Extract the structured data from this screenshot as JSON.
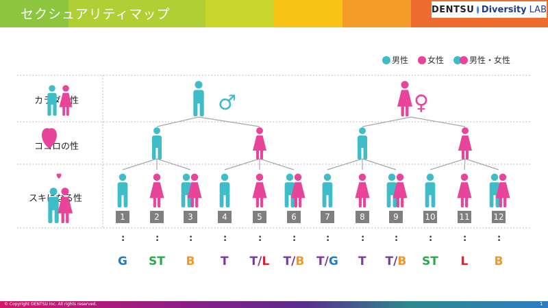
{
  "header": {
    "title": "セクシュアリティマップ",
    "colors": [
      "#8cc63f",
      "#c9d62c",
      "#f9c316",
      "#f39b26",
      "#ef7a2b",
      "#e96231"
    ]
  },
  "logo": {
    "part1": "DENTSU",
    "part2": "Diversity",
    "part3": "LAB"
  },
  "legend": [
    {
      "label": "男性",
      "color": "#3ebdc9"
    },
    {
      "label": "女性",
      "color": "#e8449a"
    },
    {
      "label": "男性・女性",
      "color": "both"
    }
  ],
  "rows": {
    "body": "カラダの性",
    "heart": "ココロの性",
    "attraction": "スキになる性"
  },
  "symbols": {
    "male": "♂",
    "female": "♀"
  },
  "numbers": [
    "1",
    "2",
    "3",
    "4",
    "5",
    "6",
    "7",
    "8",
    "9",
    "10",
    "11",
    "12"
  ],
  "categories": [
    [
      {
        "t": "G",
        "c": "#1f7cc4"
      }
    ],
    [
      {
        "t": "ST",
        "c": "#2aa84a"
      }
    ],
    [
      {
        "t": "B",
        "c": "#f0982a"
      }
    ],
    [
      {
        "t": "T",
        "c": "#7a3a9e"
      }
    ],
    [
      {
        "t": "T",
        "c": "#7a3a9e"
      },
      {
        "t": "/",
        "c": "#7a3a9e"
      },
      {
        "t": "L",
        "c": "#d12630"
      }
    ],
    [
      {
        "t": "T",
        "c": "#7a3a9e"
      },
      {
        "t": "/",
        "c": "#7a3a9e"
      },
      {
        "t": "B",
        "c": "#f0982a"
      }
    ],
    [
      {
        "t": "T",
        "c": "#7a3a9e"
      },
      {
        "t": "/",
        "c": "#7a3a9e"
      },
      {
        "t": "G",
        "c": "#1f7cc4"
      }
    ],
    [
      {
        "t": "T",
        "c": "#7a3a9e"
      }
    ],
    [
      {
        "t": "T",
        "c": "#7a3a9e"
      },
      {
        "t": "/",
        "c": "#7a3a9e"
      },
      {
        "t": "B",
        "c": "#f0982a"
      }
    ],
    [
      {
        "t": "ST",
        "c": "#2aa84a"
      }
    ],
    [
      {
        "t": "L",
        "c": "#d12630"
      }
    ],
    [
      {
        "t": "B",
        "c": "#f0982a"
      }
    ]
  ],
  "bottom_figures": [
    "m",
    "f",
    "mf",
    "m",
    "f",
    "mf",
    "m",
    "f",
    "mf",
    "m",
    "f",
    "mf"
  ],
  "colon": ":",
  "footer": {
    "copyright": "© Copyright DENTSU Inc. All rights reserved.",
    "page": "1"
  }
}
